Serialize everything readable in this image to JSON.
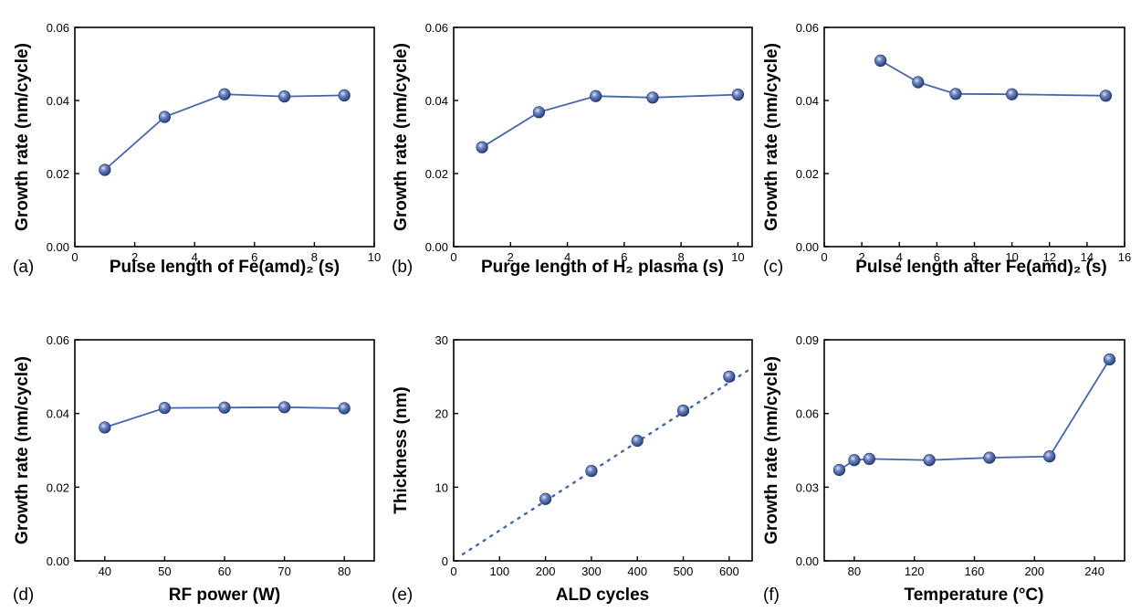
{
  "figure": {
    "colors": {
      "series": "#4566a8",
      "marker_fill": "#33509a",
      "marker_highlight": "#cfd9ee",
      "axis": "#000000"
    }
  },
  "chart_data": [
    {
      "panel": "(a)",
      "type": "line",
      "xlabel": "Pulse length of Fe(amd)₂ (s)",
      "ylabel": "Growth rate (nm/cycle)",
      "xlim": [
        0,
        10
      ],
      "ylim": [
        0,
        0.06
      ],
      "xticks": [
        0,
        2,
        4,
        6,
        8,
        10
      ],
      "xtick_labels": [
        "0",
        "2",
        "4",
        "6",
        "8",
        "10"
      ],
      "yticks": [
        0,
        0.02,
        0.04,
        0.06
      ],
      "ytick_labels": [
        "0.00",
        "0.02",
        "0.04",
        "0.06"
      ],
      "grid": false,
      "x": [
        1,
        3,
        5,
        7,
        9
      ],
      "y": [
        0.021,
        0.0355,
        0.0417,
        0.0411,
        0.0414
      ]
    },
    {
      "panel": "(b)",
      "type": "line",
      "xlabel": "Purge length of H₂ plasma (s)",
      "ylabel": "Growth rate (nm/cycle)",
      "xlim": [
        0,
        10.5
      ],
      "ylim": [
        0,
        0.06
      ],
      "xticks": [
        0,
        2,
        4,
        6,
        8,
        10
      ],
      "xtick_labels": [
        "0",
        "2",
        "4",
        "6",
        "8",
        "10"
      ],
      "yticks": [
        0,
        0.02,
        0.04,
        0.06
      ],
      "ytick_labels": [
        "0.00",
        "0.02",
        "0.04",
        "0.06"
      ],
      "grid": false,
      "x": [
        1,
        3,
        5,
        7,
        10
      ],
      "y": [
        0.0272,
        0.0368,
        0.0412,
        0.0408,
        0.0416
      ]
    },
    {
      "panel": "(c)",
      "type": "line",
      "xlabel": "Pulse length after Fe(amd)₂ (s)",
      "ylabel": "Growth rate (nm/cycle)",
      "xlim": [
        0,
        16
      ],
      "ylim": [
        0,
        0.06
      ],
      "xticks": [
        0,
        2,
        4,
        6,
        8,
        10,
        12,
        14,
        16
      ],
      "xtick_labels": [
        "0",
        "2",
        "4",
        "6",
        "8",
        "10",
        "12",
        "14",
        "16"
      ],
      "yticks": [
        0,
        0.02,
        0.04,
        0.06
      ],
      "ytick_labels": [
        "0.00",
        "0.02",
        "0.04",
        "0.06"
      ],
      "grid": false,
      "x": [
        3,
        5,
        7,
        10,
        15
      ],
      "y": [
        0.0509,
        0.045,
        0.0418,
        0.0417,
        0.0413
      ]
    },
    {
      "panel": "(d)",
      "type": "line",
      "xlabel": "RF power (W)",
      "ylabel": "Growth rate (nm/cycle)",
      "xlim": [
        35,
        85
      ],
      "ylim": [
        0,
        0.06
      ],
      "xticks": [
        40,
        50,
        60,
        70,
        80
      ],
      "xtick_labels": [
        "40",
        "50",
        "60",
        "70",
        "80"
      ],
      "yticks": [
        0,
        0.02,
        0.04,
        0.06
      ],
      "ytick_labels": [
        "0.00",
        "0.02",
        "0.04",
        "0.06"
      ],
      "grid": false,
      "x": [
        40,
        50,
        60,
        70,
        80
      ],
      "y": [
        0.0362,
        0.0415,
        0.0416,
        0.0417,
        0.0414
      ]
    },
    {
      "panel": "(e)",
      "type": "scatter",
      "xlabel": "ALD cycles",
      "ylabel": "Thickness (nm)",
      "xlim": [
        0,
        650
      ],
      "ylim": [
        0,
        30
      ],
      "xticks": [
        0,
        100,
        200,
        300,
        400,
        500,
        600
      ],
      "xtick_labels": [
        "0",
        "100",
        "200",
        "300",
        "400",
        "500",
        "600"
      ],
      "yticks": [
        0,
        10,
        20,
        30
      ],
      "ytick_labels": [
        "0",
        "10",
        "20",
        "30"
      ],
      "grid": false,
      "x": [
        200,
        300,
        400,
        500,
        600
      ],
      "y": [
        8.4,
        12.2,
        16.3,
        20.4,
        25.0
      ],
      "fit_line": {
        "x": [
          20,
          650
        ],
        "y": [
          0.9,
          26.2
        ],
        "style": "dotted"
      }
    },
    {
      "panel": "(f)",
      "type": "line",
      "xlabel": "Temperature (°C)",
      "ylabel": "Growth rate (nm/cycle)",
      "xlim": [
        60,
        260
      ],
      "ylim": [
        0,
        0.09
      ],
      "xticks": [
        80,
        120,
        160,
        200,
        240
      ],
      "xtick_labels": [
        "80",
        "120",
        "160",
        "200",
        "240"
      ],
      "yticks": [
        0,
        0.03,
        0.06,
        0.09
      ],
      "ytick_labels": [
        "0.00",
        "0.03",
        "0.06",
        "0.09"
      ],
      "grid": false,
      "x": [
        70,
        80,
        90,
        130,
        170,
        210,
        250
      ],
      "y": [
        0.037,
        0.041,
        0.0415,
        0.041,
        0.042,
        0.0425,
        0.082
      ]
    }
  ]
}
